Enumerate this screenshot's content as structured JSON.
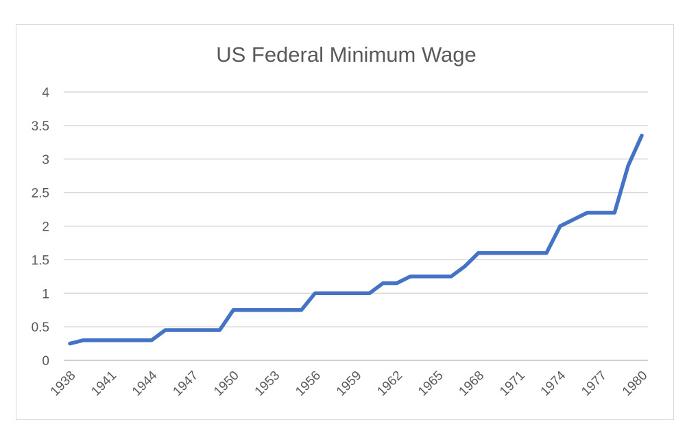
{
  "chart_data": {
    "type": "line",
    "title": "US Federal Minimum Wage",
    "xlabel": "",
    "ylabel": "",
    "ylim": [
      0,
      4
    ],
    "y_ticks": [
      "0",
      "0.5",
      "1",
      "1.5",
      "2",
      "2.5",
      "3",
      "3.5",
      "4"
    ],
    "x_tick_labels": [
      "1938",
      "1941",
      "1944",
      "1947",
      "1950",
      "1953",
      "1956",
      "1959",
      "1962",
      "1965",
      "1968",
      "1971",
      "1974",
      "1977",
      "1980"
    ],
    "grid": true,
    "legend": "none",
    "series": [
      {
        "color": "#4472c4",
        "x": [
          1938,
          1939,
          1940,
          1941,
          1942,
          1943,
          1944,
          1945,
          1946,
          1947,
          1948,
          1949,
          1950,
          1951,
          1952,
          1953,
          1954,
          1955,
          1956,
          1957,
          1958,
          1959,
          1960,
          1961,
          1962,
          1963,
          1964,
          1965,
          1966,
          1967,
          1968,
          1969,
          1970,
          1971,
          1972,
          1973,
          1974,
          1975,
          1976,
          1977,
          1978,
          1979,
          1980
        ],
        "values": [
          0.25,
          0.3,
          0.3,
          0.3,
          0.3,
          0.3,
          0.3,
          0.45,
          0.45,
          0.45,
          0.45,
          0.45,
          0.75,
          0.75,
          0.75,
          0.75,
          0.75,
          0.75,
          1.0,
          1.0,
          1.0,
          1.0,
          1.0,
          1.15,
          1.15,
          1.25,
          1.25,
          1.25,
          1.25,
          1.4,
          1.6,
          1.6,
          1.6,
          1.6,
          1.6,
          1.6,
          2.0,
          2.1,
          2.2,
          2.2,
          2.2,
          2.9,
          3.35
        ]
      }
    ]
  }
}
